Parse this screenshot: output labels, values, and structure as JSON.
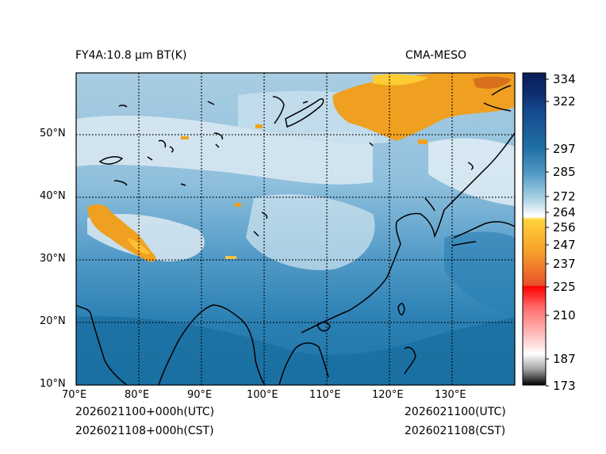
{
  "title_left": "FY4A:10.8 µm BT(K)",
  "title_right": "CMA-MESO",
  "footer": {
    "utc_left": "2026021100+000h(UTC)",
    "cst_left": "2026021108+000h(CST)",
    "utc_right": "2026021100(UTC)",
    "cst_right": "2026021108(CST)"
  },
  "map": {
    "lon_range": [
      70,
      140
    ],
    "lat_range": [
      10,
      60
    ],
    "lon_ticks": [
      "70°E",
      "80°E",
      "90°E",
      "100°E",
      "110°E",
      "120°E",
      "130°E"
    ],
    "lat_ticks": [
      "10°N",
      "20°N",
      "30°N",
      "40°N",
      "50°N"
    ],
    "grid": "dotted"
  },
  "colorbar": {
    "ticks": [
      "334",
      "322",
      "297",
      "285",
      "272",
      "264",
      "256",
      "247",
      "237",
      "225",
      "210",
      "187",
      "173"
    ],
    "range": [
      173,
      337
    ]
  },
  "colors": {
    "cold_cloud": "#f0a020",
    "warm_ocean": "#1a6fa0",
    "land": "#5ea0c8",
    "snow": "#e8f2f8"
  }
}
